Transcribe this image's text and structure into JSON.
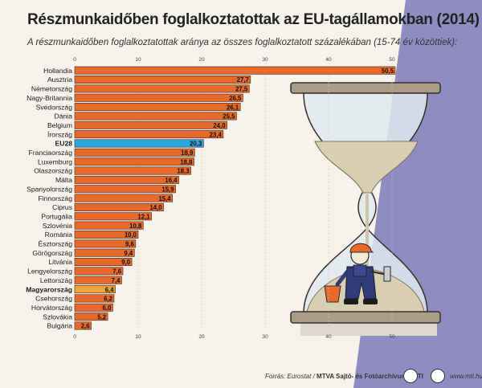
{
  "title": "Részmunkaidőben foglalkoztatottak az EU-tagállamokban (2014)",
  "subtitle": "A részmunkaidőben foglalkoztatottak aránya az összes foglalkoztatott százalékában (15-74 év közöttiek):",
  "footer": {
    "source_prefix": "Forrás: Eurostat / ",
    "source_bold": "MTVA Sajtó- és Fotóarchívum / MTI",
    "url": "www.mti.hu"
  },
  "colors": {
    "bar_default": "#e8692a",
    "bar_eu": "#2aa6e0",
    "bar_hungary": "#f0a53a",
    "bar_stroke": "#3a2a20",
    "night": "#8f8cc2",
    "ground": "#e4e2da"
  },
  "chart_data": {
    "type": "bar",
    "orientation": "horizontal",
    "title": "Részmunkaidőben foglalkoztatottak az EU-tagállamokban (2014)",
    "xlim": [
      0,
      50
    ],
    "xticks": [
      "0",
      "10",
      "20",
      "30",
      "40",
      "50"
    ],
    "decimal_separator": ",",
    "categories": [
      "Hollandia",
      "Ausztria",
      "Németország",
      "Nagy-Britannia",
      "Svédország",
      "Dánia",
      "Belgium",
      "Írország",
      "EU28",
      "Franciaország",
      "Luxemburg",
      "Olaszország",
      "Málta",
      "Spanyolország",
      "Finnország",
      "Ciprus",
      "Portugália",
      "Szlovénia",
      "Románia",
      "Észtország",
      "Görögország",
      "Litvánia",
      "Lengyelország",
      "Lettország",
      "Magyarország",
      "Csehország",
      "Horvátország",
      "Szlovákia",
      "Bulgária"
    ],
    "values": [
      50.5,
      27.7,
      27.5,
      26.5,
      26.1,
      25.5,
      24.0,
      23.4,
      20.3,
      18.9,
      18.8,
      18.3,
      16.4,
      15.9,
      15.4,
      14.0,
      12.1,
      10.8,
      10.0,
      9.6,
      9.4,
      9.0,
      7.6,
      7.4,
      6.4,
      6.2,
      6.0,
      5.2,
      2.6
    ],
    "highlight": {
      "EU28": "eu",
      "Magyarország": "hungary"
    }
  }
}
